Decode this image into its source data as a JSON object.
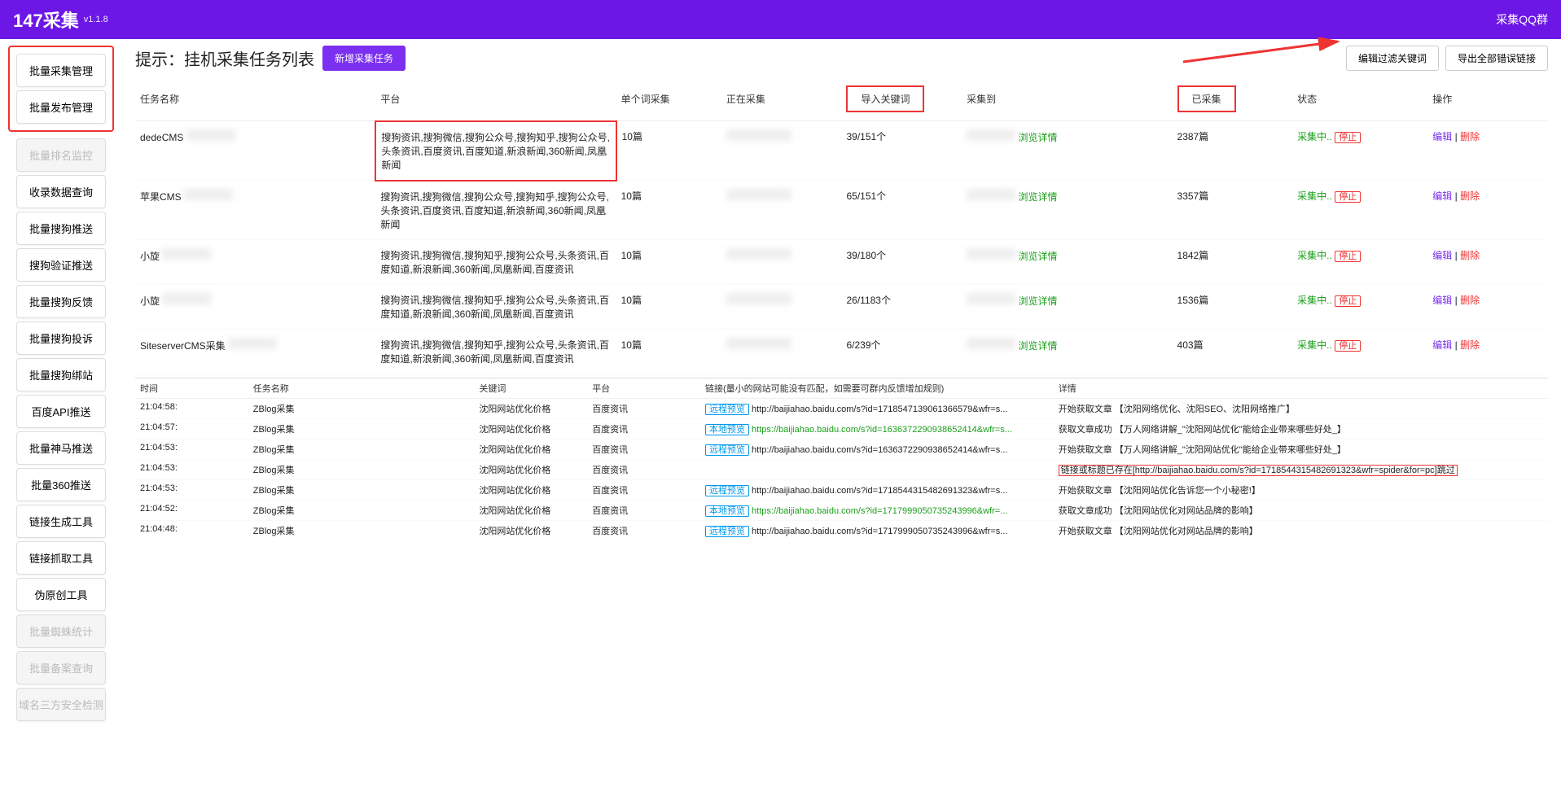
{
  "header": {
    "title": "147采集",
    "version": "v1.1.8",
    "right": "采集QQ群"
  },
  "sidebar": {
    "group": [
      "批量采集管理",
      "批量发布管理"
    ],
    "items": [
      {
        "label": "批量排名监控",
        "disabled": true
      },
      {
        "label": "收录数据查询",
        "disabled": false
      },
      {
        "label": "批量搜狗推送",
        "disabled": false
      },
      {
        "label": "搜狗验证推送",
        "disabled": false
      },
      {
        "label": "批量搜狗反馈",
        "disabled": false
      },
      {
        "label": "批量搜狗投诉",
        "disabled": false
      },
      {
        "label": "批量搜狗绑站",
        "disabled": false
      },
      {
        "label": "百度API推送",
        "disabled": false
      },
      {
        "label": "批量神马推送",
        "disabled": false
      },
      {
        "label": "批量360推送",
        "disabled": false
      },
      {
        "label": "链接生成工具",
        "disabled": false
      },
      {
        "label": "链接抓取工具",
        "disabled": false
      },
      {
        "label": "伪原创工具",
        "disabled": false
      },
      {
        "label": "批量蜘蛛统计",
        "disabled": true
      },
      {
        "label": "批量备案查询",
        "disabled": true
      },
      {
        "label": "域名三方安全检测",
        "disabled": true
      }
    ]
  },
  "titlebar": {
    "hint": "提示：挂机采集任务列表",
    "add": "新增采集任务",
    "filter": "编辑过滤关键词",
    "export": "导出全部错误链接"
  },
  "tasks": {
    "columns": [
      "任务名称",
      "平台",
      "单个词采集",
      "正在采集",
      "导入关键词",
      "采集到",
      "已采集",
      "状态",
      "操作"
    ],
    "platform_text": "搜狗资讯,搜狗微信,搜狗公众号,搜狗知乎,搜狗公众号,头条资讯,百度资讯,百度知道,新浪新闻,360新闻,凤凰新闻",
    "platform_text_alt": "搜狗资讯,搜狗微信,搜狗知乎,搜狗公众号,头条资讯,百度知道,新浪新闻,360新闻,凤凰新闻,百度资讯",
    "rows": [
      {
        "name": "dedeCMS",
        "single": "10篇",
        "kw": "39/151个",
        "done": "2387篇"
      },
      {
        "name": "苹果CMS",
        "single": "10篇",
        "kw": "65/151个",
        "done": "3357篇"
      },
      {
        "name": "小旋",
        "single": "10篇",
        "kw": "39/180个",
        "done": "1842篇"
      },
      {
        "name": "小旋",
        "single": "10篇",
        "kw": "26/1183个",
        "done": "1536篇"
      },
      {
        "name": "SiteserverCMS采集",
        "single": "10篇",
        "kw": "6/239个",
        "done": "403篇"
      }
    ],
    "browse": "浏览详情",
    "status": "采集中..",
    "stop": "停止",
    "edit": "编辑",
    "del": "删除"
  },
  "logs": {
    "columns": [
      "时间",
      "任务名称",
      "关键词",
      "平台",
      "链接(量小的网站可能没有匹配，如需要可群内反馈增加规则)",
      "详情"
    ],
    "remote": "远程预览",
    "local": "本地预览",
    "rows": [
      {
        "t": "21:04:58:",
        "task": "ZBlog采集",
        "kw": "沈阳网站优化价格",
        "pf": "百度资讯",
        "tag": "remote",
        "url": "http://baijiahao.baidu.com/s?id=1718547139061366579&wfr=s...",
        "detail": "开始获取文章 【沈阳网络优化、沈阳SEO、沈阳网络推广】"
      },
      {
        "t": "21:04:57:",
        "task": "ZBlog采集",
        "kw": "沈阳网站优化价格",
        "pf": "百度资讯",
        "tag": "local",
        "url": "https://baijiahao.baidu.com/s?id=1636372290938652414&wfr=s...",
        "green": true,
        "detail": "获取文章成功 【万人网络讲解_\"沈阳网站优化\"能给企业带来哪些好处_】"
      },
      {
        "t": "21:04:53:",
        "task": "ZBlog采集",
        "kw": "沈阳网站优化价格",
        "pf": "百度资讯",
        "tag": "remote",
        "url": "http://baijiahao.baidu.com/s?id=1636372290938652414&wfr=s...",
        "detail": "开始获取文章 【万人网络讲解_\"沈阳网站优化\"能给企业带来哪些好处_】"
      },
      {
        "t": "21:04:53:",
        "task": "ZBlog采集",
        "kw": "沈阳网站优化价格",
        "pf": "百度资讯",
        "tag": "",
        "url": "",
        "detail": "链接或标题已存在[http://baijiahao.baidu.com/s?id=1718544315482691323&wfr=spider&for=pc]跳过",
        "redbox": true
      },
      {
        "t": "21:04:53:",
        "task": "ZBlog采集",
        "kw": "沈阳网站优化价格",
        "pf": "百度资讯",
        "tag": "remote",
        "url": "http://baijiahao.baidu.com/s?id=1718544315482691323&wfr=s...",
        "detail": "开始获取文章 【沈阳网站优化告诉您一个小秘密!】"
      },
      {
        "t": "21:04:52:",
        "task": "ZBlog采集",
        "kw": "沈阳网站优化价格",
        "pf": "百度资讯",
        "tag": "local",
        "url": "https://baijiahao.baidu.com/s?id=1717999050735243996&wfr=...",
        "green": true,
        "detail": "获取文章成功 【沈阳网站优化对网站品牌的影响】"
      },
      {
        "t": "21:04:48:",
        "task": "ZBlog采集",
        "kw": "沈阳网站优化价格",
        "pf": "百度资讯",
        "tag": "remote",
        "url": "http://baijiahao.baidu.com/s?id=1717999050735243996&wfr=s...",
        "detail": "开始获取文章 【沈阳网站优化对网站品牌的影响】"
      }
    ]
  }
}
